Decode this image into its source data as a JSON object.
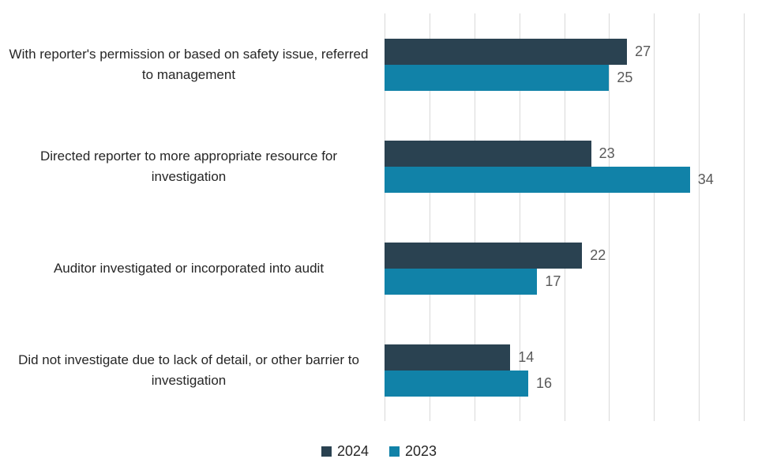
{
  "chart_data": {
    "type": "bar",
    "orientation": "horizontal",
    "title": "",
    "xlabel": "",
    "ylabel": "",
    "categories": [
      "With reporter's permission or based on safety issue, referred to management",
      "Directed reporter to more appropriate resource for investigation",
      "Auditor investigated or incorporated into audit",
      "Did not investigate due to lack of detail, or other barrier to investigation"
    ],
    "series": [
      {
        "name": "2024",
        "color": "#2a4251",
        "values": [
          27,
          23,
          22,
          14
        ]
      },
      {
        "name": "2023",
        "color": "#1182a8",
        "values": [
          25,
          34,
          17,
          16
        ]
      }
    ],
    "xlim": [
      0,
      40
    ],
    "gridline_step": 5,
    "grid": true,
    "gridline_color": "#d9d9d9",
    "value_labels": true,
    "value_label_color": "#595959",
    "category_label_color": "#262626",
    "legend_position": "bottom",
    "legend_labels": [
      "2024",
      "2023"
    ]
  }
}
